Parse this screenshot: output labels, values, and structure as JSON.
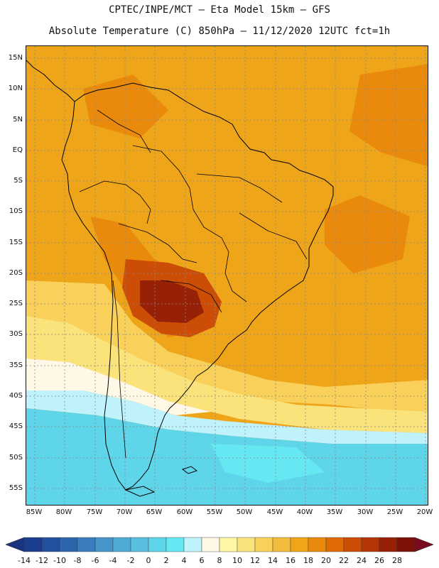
{
  "header": {
    "title_line1": "CPTEC/INPE/MCT –  Eta Model 15km – GFS",
    "title_line2": "Absolute Temperature (C) 850hPa – 11/12/2020 12UTC fct=1h"
  },
  "map": {
    "lat_labels": [
      "15N",
      "10N",
      "5N",
      "EQ",
      "5S",
      "10S",
      "15S",
      "20S",
      "25S",
      "30S",
      "35S",
      "40S",
      "45S",
      "50S",
      "55S"
    ],
    "lon_labels": [
      "85W",
      "80W",
      "75W",
      "70W",
      "65W",
      "60W",
      "55W",
      "50W",
      "45W",
      "40W",
      "35W",
      "30W",
      "25W",
      "20W"
    ],
    "extent": {
      "lon_min": -86.5,
      "lon_max": -19.5,
      "lat_min": -58.5,
      "lat_max": 17.5
    },
    "gridlines": true
  },
  "colorbar": {
    "labels": [
      "-14",
      "-12",
      "-10",
      "-8",
      "-6",
      "-4",
      "-2",
      "0",
      "2",
      "4",
      "6",
      "8",
      "10",
      "12",
      "14",
      "16",
      "18",
      "20",
      "22",
      "24",
      "26",
      "28"
    ],
    "colors": [
      "#1b3d8f",
      "#24519f",
      "#2e66ae",
      "#3a7dbd",
      "#4695c8",
      "#4faad3",
      "#58bfdf",
      "#5fd5ea",
      "#66e8f3",
      "#bff2fa",
      "#fff8e6",
      "#fff6a6",
      "#fbe37c",
      "#f8d05a",
      "#f3bc3c",
      "#efa51a",
      "#ea8a0c",
      "#e06a05",
      "#cc4d06",
      "#b43606",
      "#962107",
      "#7d1107"
    ],
    "under_color": "#1a3380",
    "over_color": "#7a0a1e"
  },
  "field_colors": {
    "tropics": "#efa51a",
    "warm_orange": "#ea8a0c",
    "hot": "#cc4d06",
    "hottest": "#962107",
    "mild": "#f8d05a",
    "cool_yellow": "#fbe37c",
    "cream": "#fff8e6",
    "pale_cyan": "#bff2fa",
    "cyan": "#5fd5ea",
    "light_blue": "#66e8f3"
  }
}
